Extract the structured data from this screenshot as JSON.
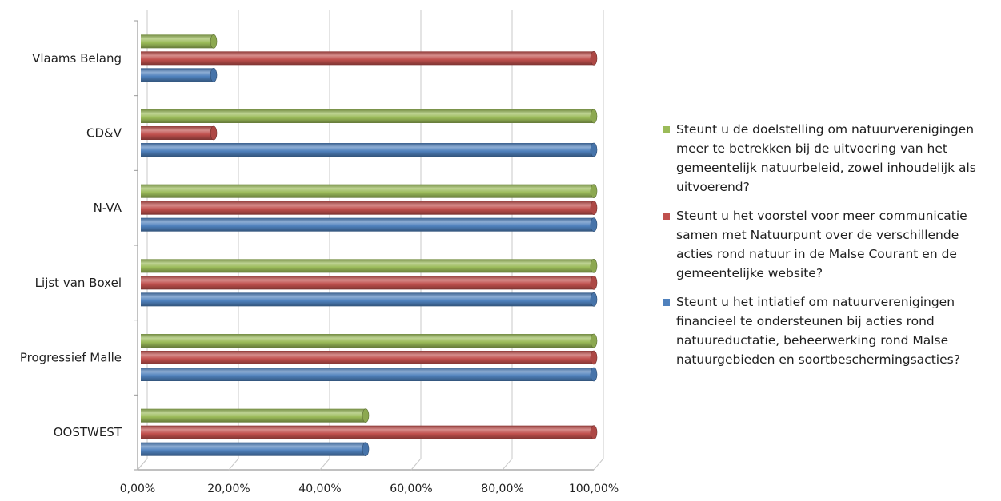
{
  "chart_data": {
    "type": "bar",
    "orientation": "horizontal",
    "categories": [
      "Vlaams Belang",
      "CD&V",
      "N-VA",
      "Lijst van Boxel",
      "Progressief Malle",
      "OOSTWEST"
    ],
    "series": [
      {
        "name": "Steunt u de doelstelling om natuurverenigingen meer te betrekken bij de uitvoering van het gemeentelijk natuurbeleid, zowel inhoudelijk als uitvoerend?",
        "color": "#9BBB59",
        "values": [
          16.67,
          100,
          100,
          100,
          100,
          50
        ]
      },
      {
        "name": "Steunt u het voorstel voor meer communicatie samen met Natuurpunt over de verschillende acties rond natuur in de Malse Courant en de gemeentelijke website?",
        "color": "#C0504D",
        "values": [
          100,
          16.67,
          100,
          100,
          100,
          100
        ]
      },
      {
        "name": "Steunt u het intiatief om natuurverenigingen financieel te ondersteunen bij acties rond natuureductatie, beheerwerking rond Malse natuurgebieden en soortbeschermingsacties?",
        "color": "#4F81BD",
        "values": [
          16.67,
          100,
          100,
          100,
          100,
          50
        ]
      }
    ],
    "xlim": [
      0,
      100
    ],
    "xticks": [
      "0,00%",
      "20,00%",
      "40,00%",
      "60,00%",
      "80,00%",
      "100,00%"
    ],
    "grid": true,
    "legend_position": "right"
  }
}
